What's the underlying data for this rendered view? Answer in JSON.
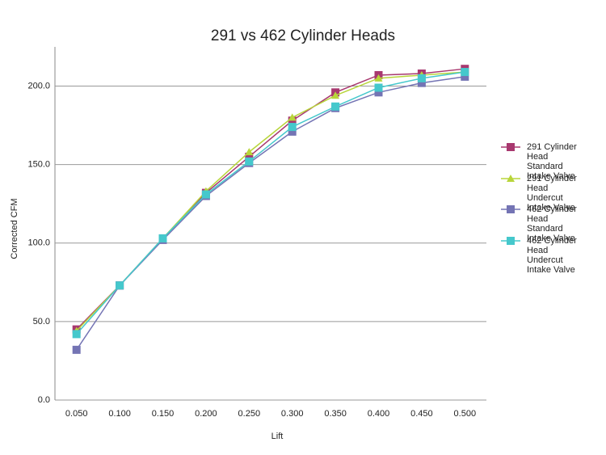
{
  "chart_data": {
    "type": "line",
    "title": "291 vs 462 Cylinder Heads",
    "x_label": "Lift",
    "y_label": "Corrected CFM",
    "categories": [
      "0.050",
      "0.100",
      "0.150",
      "0.200",
      "0.250",
      "0.300",
      "0.350",
      "0.400",
      "0.450",
      "0.500"
    ],
    "series": [
      {
        "name": "291 Cylinder Head Standard Intake Valve",
        "color": "#a8386f",
        "marker": "square",
        "values": [
          45,
          73,
          103,
          132,
          155,
          178,
          196,
          207,
          208,
          211
        ]
      },
      {
        "name": "291 Cylinder Head Undercut Intake Valve",
        "color": "#b8d53a",
        "marker": "triangle",
        "values": [
          44,
          73,
          103,
          133,
          158,
          180,
          194,
          205,
          207,
          209
        ]
      },
      {
        "name": "462 Cylinder Head Standard Intake Valve",
        "color": "#7474b4",
        "marker": "square",
        "values": [
          32,
          73,
          102,
          130,
          151,
          171,
          186,
          196,
          202,
          206
        ]
      },
      {
        "name": "462 Cylinder Head Undercut Intake Valve",
        "color": "#45c8cc",
        "marker": "square",
        "values": [
          42,
          73,
          103,
          131,
          152,
          174,
          187,
          199,
          205,
          209
        ]
      }
    ],
    "ylim": [
      0,
      225
    ],
    "yticks": [
      {
        "value": 0,
        "label": "0.0"
      },
      {
        "value": 50,
        "label": "50.0"
      },
      {
        "value": 100,
        "label": "100.0"
      },
      {
        "value": 150,
        "label": "150.0"
      },
      {
        "value": 200,
        "label": "200.0"
      }
    ],
    "grid": true,
    "legend": "right"
  }
}
